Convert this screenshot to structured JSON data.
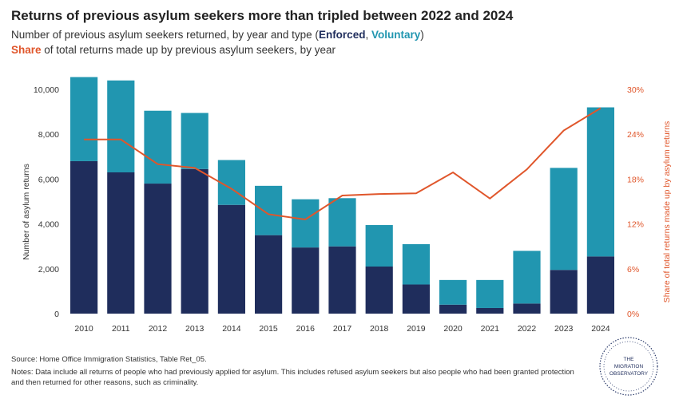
{
  "header": {
    "title": "Returns of previous asylum seekers more than tripled between 2022 and 2024",
    "subtitle_prefix": "Number of previous asylum seekers returned, by year and type (",
    "subtitle_enforced": "Enforced",
    "subtitle_sep": ", ",
    "subtitle_voluntary": "Voluntary",
    "subtitle_suffix": ")",
    "subtitle2_share": "Share",
    "subtitle2_rest": " of total returns made up by previous asylum seekers, by year"
  },
  "footer": {
    "source": "Source: Home Office Immigration Statistics, Table Ret_05.",
    "notes": "Notes: Data include all returns of people who had previously applied for asylum. This includes refused asylum seekers but also people who had been granted protection and then returned for other reasons, such as criminality."
  },
  "logo": {
    "line1": "THE",
    "line2": "MIGRATION",
    "line3": "OBSERVATORY"
  },
  "colors": {
    "enforced": "#1f2d5c",
    "voluntary": "#2196b0",
    "share": "#e0562b"
  },
  "chart_data": {
    "type": "bar",
    "stacked": true,
    "categories": [
      "2010",
      "2011",
      "2012",
      "2013",
      "2014",
      "2015",
      "2016",
      "2017",
      "2018",
      "2019",
      "2020",
      "2021",
      "2022",
      "2023",
      "2024"
    ],
    "series": [
      {
        "name": "Enforced",
        "values": [
          6800,
          6300,
          5800,
          6450,
          4850,
          3500,
          2950,
          3000,
          2100,
          1300,
          400,
          250,
          450,
          1950,
          2550
        ]
      },
      {
        "name": "Voluntary",
        "values": [
          3750,
          4100,
          3250,
          2500,
          2000,
          2200,
          2150,
          2150,
          1850,
          1800,
          1100,
          1250,
          2350,
          4550,
          6650
        ]
      }
    ],
    "line_series": {
      "name": "Share",
      "axis": "right",
      "values": [
        23.3,
        23.3,
        20.0,
        19.5,
        16.7,
        13.3,
        12.6,
        15.8,
        16.0,
        16.1,
        18.9,
        15.4,
        19.3,
        24.5,
        27.5
      ]
    },
    "ylabel": "Number of asylum returns",
    "ylabel_right": "Share of total returns made up by asylum returns",
    "ylim": [
      0,
      10500
    ],
    "ylim_right": [
      0,
      31.5
    ],
    "yticks": [
      "0",
      "2,000",
      "4,000",
      "6,000",
      "8,000",
      "10,000"
    ],
    "yticks_right": [
      "0%",
      "6%",
      "12%",
      "18%",
      "24%",
      "30%"
    ],
    "ytick_values": [
      0,
      2000,
      4000,
      6000,
      8000,
      10000
    ],
    "ytick_values_right": [
      0,
      6,
      12,
      18,
      24,
      30
    ],
    "grid": false,
    "legend": "in subtitle"
  }
}
